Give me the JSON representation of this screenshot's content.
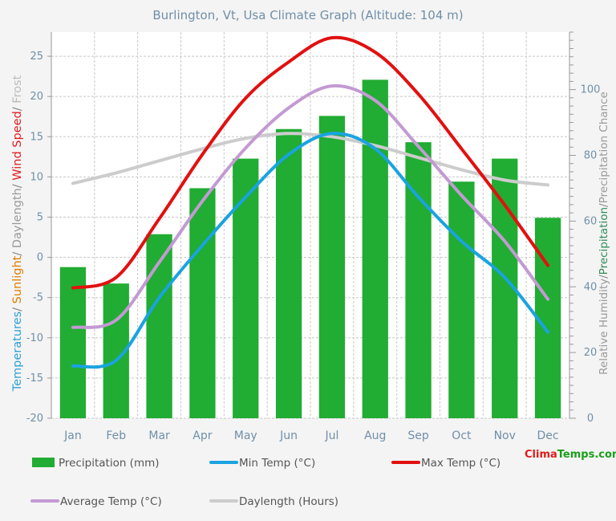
{
  "chart_data": {
    "type": "bar+line",
    "title": "Burlington, Vt, Usa Climate Graph (Altitude: 104 m)",
    "categories": [
      "Jan",
      "Feb",
      "Mar",
      "Apr",
      "May",
      "Jun",
      "Jul",
      "Aug",
      "Sep",
      "Oct",
      "Nov",
      "Dec"
    ],
    "left_axis": {
      "label_parts": [
        {
          "text": "Temperatures",
          "color": "#2a9fd6"
        },
        {
          "text": "/ ",
          "color": "#888888"
        },
        {
          "text": "Sunlight",
          "color": "#e07b00"
        },
        {
          "text": "/ ",
          "color": "#888888"
        },
        {
          "text": "Daylength",
          "color": "#9a9a9a"
        },
        {
          "text": "/ ",
          "color": "#888888"
        },
        {
          "text": "Wind Speed",
          "color": "#e21a1a"
        },
        {
          "text": "/ ",
          "color": "#888888"
        },
        {
          "text": "Frost",
          "color": "#bbbbbb"
        }
      ],
      "range": [
        -20,
        28
      ],
      "ticks": [
        -20,
        -15,
        -10,
        -5,
        0,
        5,
        10,
        15,
        20,
        25
      ]
    },
    "right_axis": {
      "label_parts": [
        {
          "text": "Relative Humidity",
          "color": "#9a9a9a"
        },
        {
          "text": "/",
          "color": "#888888"
        },
        {
          "text": "Precipitation",
          "color": "#2e8b57"
        },
        {
          "text": "/",
          "color": "#888888"
        },
        {
          "text": "Precipitation Chance",
          "color": "#9a9a9a"
        }
      ],
      "range": [
        0,
        117.5
      ],
      "ticks": [
        0,
        20,
        40,
        60,
        80,
        100
      ]
    },
    "series": [
      {
        "name": "Precipitation (mm)",
        "kind": "bar",
        "axis": "right",
        "color": "#21ac33",
        "values": [
          46,
          41,
          56,
          70,
          79,
          88,
          92,
          103,
          84,
          72,
          79,
          61
        ]
      },
      {
        "name": "Min Temp (°C)",
        "kind": "line",
        "axis": "left",
        "color": "#1aa3e0",
        "values": [
          -13.5,
          -12.8,
          -5.0,
          1.5,
          7.5,
          12.8,
          15.4,
          13.5,
          7.5,
          2.0,
          -2.5,
          -9.3
        ]
      },
      {
        "name": "Max Temp (°C)",
        "kind": "line",
        "axis": "left",
        "color": "#e21010",
        "values": [
          -3.8,
          -2.5,
          4.8,
          12.8,
          19.8,
          24.3,
          27.3,
          25.5,
          20.3,
          13.5,
          6.5,
          -1.0
        ]
      },
      {
        "name": "Average Temp (°C)",
        "kind": "line",
        "axis": "left",
        "color": "#c39ad3",
        "values": [
          -8.7,
          -7.8,
          -0.6,
          7.0,
          13.6,
          18.6,
          21.3,
          19.5,
          13.8,
          7.7,
          2.0,
          -5.2
        ]
      },
      {
        "name": "Daylength (Hours)",
        "kind": "line",
        "axis": "left",
        "color": "#cccccc",
        "values": [
          9.2,
          10.5,
          12.0,
          13.5,
          14.8,
          15.4,
          15.0,
          13.9,
          12.4,
          10.9,
          9.6,
          9.0
        ]
      }
    ],
    "legend": [
      {
        "label": "Precipitation (mm)",
        "swatch": "bar",
        "color": "#21ac33"
      },
      {
        "label": "Min Temp (°C)",
        "swatch": "line",
        "color": "#1aa3e0"
      },
      {
        "label": "Max Temp (°C)",
        "swatch": "line",
        "color": "#e21010"
      },
      {
        "label": "Average Temp (°C)",
        "swatch": "line",
        "color": "#c39ad3"
      },
      {
        "label": "Daylength (Hours)",
        "swatch": "line",
        "color": "#cccccc"
      }
    ]
  },
  "brand": {
    "part1": "Clima",
    "part2": "Temps.com"
  }
}
